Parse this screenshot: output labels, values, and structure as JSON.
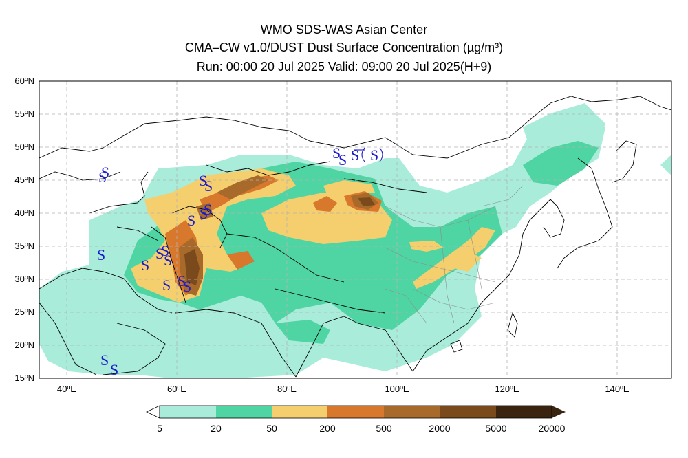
{
  "title": {
    "line1": "WMO SDS-WAS Asian Center",
    "line2": "CMA–CW v1.0/DUST Dust Surface Concentration (µg/m³)",
    "line3": "Run: 00:00 20 Jul 2025    Valid: 09:00 20 Jul 2025(H+9)"
  },
  "map": {
    "lon_range": [
      35,
      150
    ],
    "lat_range": [
      15,
      60
    ],
    "lat_ticks": [
      "15ºN",
      "20ºN",
      "25ºN",
      "30ºN",
      "35ºN",
      "40ºN",
      "45ºN",
      "50ºN",
      "55ºN",
      "60ºN"
    ],
    "lon_ticks": [
      "40ºE",
      "60ºE",
      "80ºE",
      "100ºE",
      "120ºE",
      "140ºE"
    ],
    "grid": "dashed"
  },
  "colorbar": {
    "levels": [
      "5",
      "20",
      "50",
      "200",
      "500",
      "2000",
      "5000",
      "20000"
    ],
    "colors": [
      "#a8ecd9",
      "#4fd4a3",
      "#f5cf6e",
      "#d8782c",
      "#a86a2a",
      "#7a4a1c",
      "#3a2410"
    ]
  },
  "dust_station_symbol": "S",
  "colors": {
    "land_outline": "#000000",
    "dust_symbol": "#1a1acc"
  }
}
